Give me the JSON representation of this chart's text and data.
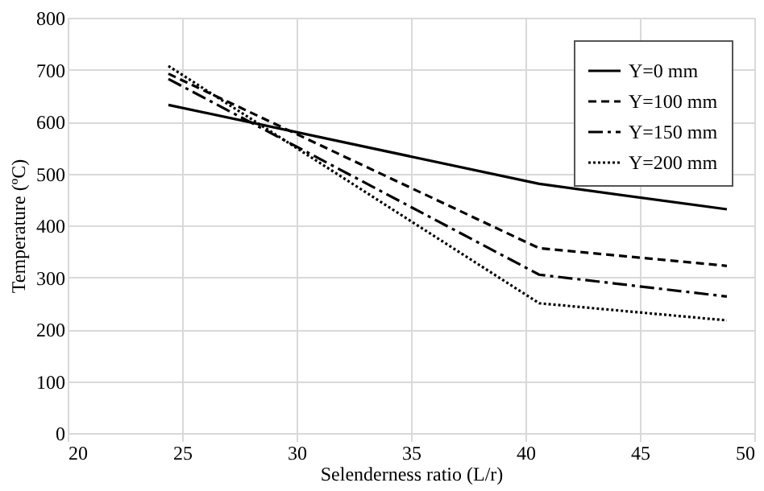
{
  "chart_data": {
    "type": "line",
    "xlabel": "Selenderness ratio (L/r)",
    "ylabel": "Temperature (ºC)",
    "x": [
      24.4,
      40.6,
      48.8
    ],
    "series": [
      {
        "name": "Y=0 mm",
        "color": "#000000",
        "line_style": "solid",
        "values": [
          632,
          480,
          431
        ]
      },
      {
        "name": "Y=100 mm",
        "color": "#000000",
        "line_style": "dashed",
        "values": [
          692,
          356,
          322
        ]
      },
      {
        "name": "Y=150 mm",
        "color": "#000000",
        "line_style": "dashdot",
        "values": [
          682,
          305,
          263
        ]
      },
      {
        "name": "Y=200 mm",
        "color": "#000000",
        "line_style": "dotted",
        "values": [
          707,
          250,
          217
        ]
      }
    ],
    "xlim": [
      20,
      50
    ],
    "xticks": [
      20,
      25,
      30,
      35,
      40,
      45,
      50
    ],
    "ylim": [
      0,
      800
    ],
    "yticks": [
      0,
      100,
      200,
      300,
      400,
      500,
      600,
      700,
      800
    ],
    "grid": true,
    "legend": "top right",
    "marker": "none"
  }
}
